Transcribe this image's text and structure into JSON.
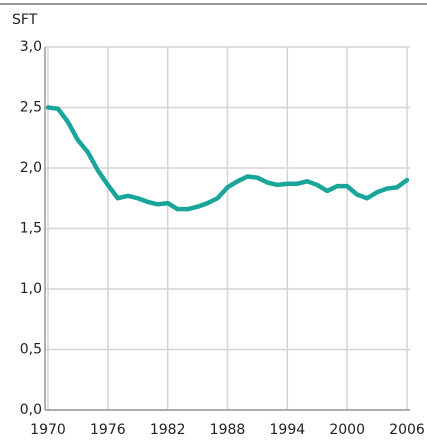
{
  "chart_data": {
    "type": "line",
    "y_label": "SFT",
    "x": [
      1970,
      1971,
      1972,
      1973,
      1974,
      1975,
      1976,
      1977,
      1978,
      1979,
      1980,
      1981,
      1982,
      1983,
      1984,
      1985,
      1986,
      1987,
      1988,
      1989,
      1990,
      1991,
      1992,
      1993,
      1994,
      1995,
      1996,
      1997,
      1998,
      1999,
      2000,
      2001,
      2002,
      2003,
      2004,
      2005,
      2006
    ],
    "values": [
      2.5,
      2.49,
      2.38,
      2.23,
      2.13,
      1.98,
      1.86,
      1.75,
      1.77,
      1.75,
      1.72,
      1.7,
      1.71,
      1.66,
      1.66,
      1.68,
      1.71,
      1.75,
      1.84,
      1.89,
      1.93,
      1.92,
      1.88,
      1.86,
      1.87,
      1.87,
      1.89,
      1.86,
      1.81,
      1.85,
      1.85,
      1.78,
      1.75,
      1.8,
      1.83,
      1.84,
      1.9
    ],
    "color": "#1aa59a",
    "xlim": [
      1970,
      2006
    ],
    "xticks": [
      1970,
      1976,
      1982,
      1988,
      1994,
      2000,
      2006
    ],
    "ylim": [
      0,
      3
    ],
    "yticks": [
      {
        "value": 0,
        "label": "0,0"
      },
      {
        "value": 0.5,
        "label": "0,5"
      },
      {
        "value": 1,
        "label": "1,0"
      },
      {
        "value": 1.5,
        "label": "1,5"
      },
      {
        "value": 2,
        "label": "2,0"
      },
      {
        "value": 2.5,
        "label": "2,5"
      },
      {
        "value": 3,
        "label": "3,0"
      }
    ],
    "grid": true
  }
}
